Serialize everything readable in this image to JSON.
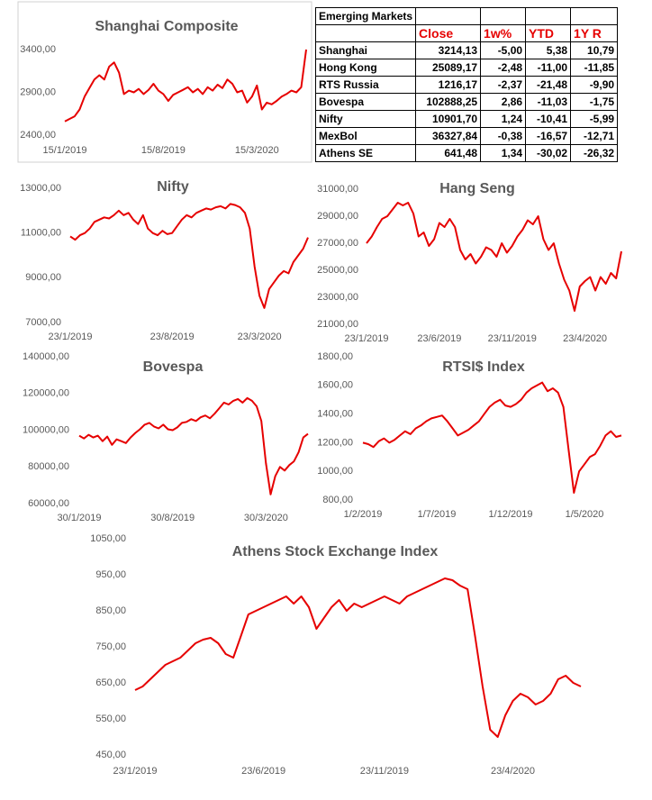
{
  "chart_data": [
    {
      "type": "line",
      "title": "Shanghai Composite",
      "color": "#e60000",
      "categories": [
        "15/1/2019",
        null,
        null,
        null,
        null,
        null,
        null,
        null,
        null,
        null,
        null,
        null,
        null,
        null,
        null,
        null,
        null,
        null,
        null,
        null,
        "15/8/2019",
        null,
        null,
        null,
        null,
        null,
        null,
        null,
        null,
        null,
        null,
        null,
        null,
        null,
        null,
        null,
        null,
        null,
        null,
        "15/3/2020",
        null,
        null,
        null,
        null,
        null,
        null,
        null,
        null,
        null,
        null
      ],
      "values": [
        2560,
        2590,
        2620,
        2700,
        2850,
        2950,
        3050,
        3100,
        3050,
        3200,
        3250,
        3130,
        2880,
        2920,
        2900,
        2940,
        2880,
        2930,
        3000,
        2920,
        2880,
        2800,
        2870,
        2900,
        2930,
        2960,
        2900,
        2940,
        2880,
        2960,
        2920,
        2990,
        2950,
        3050,
        3000,
        2900,
        2920,
        2780,
        2850,
        2980,
        2700,
        2780,
        2760,
        2800,
        2850,
        2880,
        2920,
        2900,
        2960,
        3400
      ],
      "ylim": [
        2400,
        3400
      ],
      "yticks": [
        {
          "value": 2400,
          "label": "2400,00"
        },
        {
          "value": 2900,
          "label": "2900,00"
        },
        {
          "value": 3400,
          "label": "3400,00"
        }
      ]
    },
    {
      "type": "line",
      "title": "Nifty",
      "color": "#e60000",
      "categories": [
        "23/1/2019",
        null,
        null,
        null,
        null,
        null,
        null,
        null,
        null,
        null,
        null,
        null,
        null,
        null,
        null,
        null,
        null,
        null,
        null,
        null,
        null,
        "23/8/2019",
        null,
        null,
        null,
        null,
        null,
        null,
        null,
        null,
        null,
        null,
        null,
        null,
        null,
        null,
        null,
        null,
        null,
        "23/3/2020",
        null,
        null,
        null,
        null,
        null,
        null,
        null,
        null,
        null,
        null
      ],
      "values": [
        10850,
        10700,
        10900,
        11000,
        11200,
        11500,
        11600,
        11700,
        11650,
        11800,
        12000,
        11800,
        11900,
        11600,
        11400,
        11800,
        11200,
        11000,
        10900,
        11100,
        10950,
        11000,
        11300,
        11600,
        11800,
        11700,
        11900,
        12000,
        12100,
        12050,
        12150,
        12200,
        12100,
        12300,
        12250,
        12150,
        11900,
        11200,
        9500,
        8200,
        7650,
        8500,
        8800,
        9100,
        9300,
        9200,
        9700,
        10000,
        10300,
        10800
      ],
      "ylim": [
        7000,
        13000
      ],
      "yticks": [
        {
          "value": 7000,
          "label": "7000,00"
        },
        {
          "value": 9000,
          "label": "9000,00"
        },
        {
          "value": 11000,
          "label": "11000,00"
        },
        {
          "value": 13000,
          "label": "13000,00"
        }
      ]
    },
    {
      "type": "line",
      "title": "Hang Seng",
      "color": "#e60000",
      "categories": [
        "23/1/2019",
        null,
        null,
        null,
        null,
        null,
        null,
        null,
        null,
        null,
        null,
        null,
        null,
        null,
        "23/6/2019",
        null,
        null,
        null,
        null,
        null,
        null,
        null,
        null,
        null,
        null,
        null,
        null,
        null,
        "23/11/2019",
        null,
        null,
        null,
        null,
        null,
        null,
        null,
        null,
        null,
        null,
        null,
        null,
        null,
        "23/4/2020",
        null,
        null,
        null,
        null,
        null,
        null,
        null
      ],
      "values": [
        27000,
        27500,
        28200,
        28800,
        29000,
        29500,
        30000,
        29800,
        30000,
        29200,
        27500,
        27800,
        26800,
        27300,
        28500,
        28200,
        28800,
        28200,
        26500,
        25800,
        26200,
        25500,
        26000,
        26700,
        26500,
        26000,
        27000,
        26300,
        26800,
        27500,
        28000,
        28700,
        28400,
        29000,
        27300,
        26500,
        27000,
        25500,
        24300,
        23500,
        22000,
        23800,
        24200,
        24500,
        23500,
        24500,
        24000,
        24800,
        24400,
        26400
      ],
      "ylim": [
        21000,
        31000
      ],
      "yticks": [
        {
          "value": 21000,
          "label": "21000,00"
        },
        {
          "value": 23000,
          "label": "23000,00"
        },
        {
          "value": 25000,
          "label": "25000,00"
        },
        {
          "value": 27000,
          "label": "27000,00"
        },
        {
          "value": 29000,
          "label": "29000,00"
        },
        {
          "value": 31000,
          "label": "31000,00"
        }
      ]
    },
    {
      "type": "line",
      "title": "Bovespa",
      "color": "#e60000",
      "categories": [
        "30/1/2019",
        null,
        null,
        null,
        null,
        null,
        null,
        null,
        null,
        null,
        null,
        null,
        null,
        null,
        null,
        null,
        null,
        null,
        null,
        null,
        "30/8/2019",
        null,
        null,
        null,
        null,
        null,
        null,
        null,
        null,
        null,
        null,
        null,
        null,
        null,
        null,
        null,
        null,
        null,
        null,
        null,
        "30/3/2020",
        null,
        null,
        null,
        null,
        null,
        null,
        null,
        null,
        null
      ],
      "values": [
        97000,
        95500,
        97500,
        96000,
        97000,
        94000,
        96500,
        92000,
        95000,
        94000,
        93000,
        96000,
        98500,
        100500,
        103000,
        104000,
        102000,
        101000,
        103000,
        100500,
        100000,
        101500,
        104000,
        104500,
        106000,
        105000,
        107000,
        108000,
        106500,
        109000,
        112000,
        115000,
        114000,
        116000,
        117000,
        115000,
        117500,
        116000,
        113000,
        105000,
        82000,
        65000,
        75000,
        80000,
        78000,
        81000,
        83000,
        88000,
        96000,
        98000
      ],
      "ylim": [
        60000,
        140000
      ],
      "yticks": [
        {
          "value": 60000,
          "label": "60000,00"
        },
        {
          "value": 80000,
          "label": "80000,00"
        },
        {
          "value": 100000,
          "label": "100000,00"
        },
        {
          "value": 120000,
          "label": "120000,00"
        },
        {
          "value": 140000,
          "label": "140000,00"
        }
      ]
    },
    {
      "type": "line",
      "title": "RTSI$ Index",
      "color": "#e60000",
      "categories": [
        "1/2/2019",
        null,
        null,
        null,
        null,
        null,
        null,
        null,
        null,
        null,
        null,
        null,
        null,
        null,
        "1/7/2019",
        null,
        null,
        null,
        null,
        null,
        null,
        null,
        null,
        null,
        null,
        null,
        null,
        null,
        "1/12/2019",
        null,
        null,
        null,
        null,
        null,
        null,
        null,
        null,
        null,
        null,
        null,
        null,
        null,
        "1/5/2020",
        null,
        null,
        null,
        null,
        null,
        null,
        null
      ],
      "values": [
        1200,
        1190,
        1170,
        1210,
        1230,
        1200,
        1220,
        1250,
        1280,
        1260,
        1300,
        1320,
        1350,
        1370,
        1380,
        1390,
        1350,
        1300,
        1250,
        1270,
        1290,
        1320,
        1350,
        1400,
        1450,
        1480,
        1500,
        1460,
        1450,
        1470,
        1500,
        1550,
        1580,
        1600,
        1620,
        1560,
        1580,
        1550,
        1450,
        1150,
        850,
        1000,
        1050,
        1100,
        1120,
        1180,
        1250,
        1280,
        1240,
        1250
      ],
      "ylim": [
        800,
        1800
      ],
      "yticks": [
        {
          "value": 800,
          "label": "800,00"
        },
        {
          "value": 1000,
          "label": "1000,00"
        },
        {
          "value": 1200,
          "label": "1200,00"
        },
        {
          "value": 1400,
          "label": "1400,00"
        },
        {
          "value": 1600,
          "label": "1600,00"
        },
        {
          "value": 1800,
          "label": "1800,00"
        }
      ]
    },
    {
      "type": "line",
      "title": "Athens Stock Exchange Index",
      "color": "#e60000",
      "categories": [
        "23/1/2019",
        null,
        null,
        null,
        null,
        null,
        null,
        null,
        null,
        null,
        null,
        null,
        null,
        null,
        null,
        null,
        null,
        "23/6/2019",
        null,
        null,
        null,
        null,
        null,
        null,
        null,
        null,
        null,
        null,
        null,
        null,
        null,
        null,
        null,
        "23/11/2019",
        null,
        null,
        null,
        null,
        null,
        null,
        null,
        null,
        null,
        null,
        null,
        null,
        null,
        null,
        null,
        null,
        "23/4/2020",
        null,
        null,
        null,
        null,
        null,
        null,
        null,
        null,
        null
      ],
      "values": [
        630,
        640,
        660,
        680,
        700,
        710,
        720,
        740,
        760,
        770,
        775,
        760,
        730,
        720,
        780,
        840,
        850,
        860,
        870,
        880,
        890,
        870,
        890,
        860,
        800,
        830,
        860,
        880,
        850,
        870,
        860,
        870,
        880,
        890,
        880,
        870,
        890,
        900,
        910,
        920,
        930,
        940,
        935,
        920,
        910,
        780,
        640,
        520,
        500,
        560,
        600,
        620,
        610,
        590,
        600,
        620,
        660,
        670,
        650,
        640
      ],
      "ylim": [
        450,
        1050
      ],
      "yticks": [
        {
          "value": 450,
          "label": "450,00"
        },
        {
          "value": 550,
          "label": "550,00"
        },
        {
          "value": 650,
          "label": "650,00"
        },
        {
          "value": 750,
          "label": "750,00"
        },
        {
          "value": 850,
          "label": "850,00"
        },
        {
          "value": 950,
          "label": "950,00"
        },
        {
          "value": 1050,
          "label": "1050,00"
        }
      ]
    }
  ],
  "table": {
    "title": "Emerging Markets",
    "columns": [
      "Close",
      "1w%",
      "YTD",
      "1Y R"
    ],
    "rows": [
      [
        "Shanghai",
        "3214,13",
        "-5,00",
        "5,38",
        "10,79"
      ],
      [
        "Hong Kong",
        "25089,17",
        "-2,48",
        "-11,00",
        "-11,85"
      ],
      [
        "RTS Russia",
        "1216,17",
        "-2,37",
        "-21,48",
        "-9,90"
      ],
      [
        "Bovespa",
        "102888,25",
        "2,86",
        "-11,03",
        "-1,75"
      ],
      [
        "Nifty",
        "10901,70",
        "1,24",
        "-10,41",
        "-5,99"
      ],
      [
        "MexBol",
        "36327,84",
        "-0,38",
        "-16,57",
        "-12,71"
      ],
      [
        "Athens SE",
        "641,48",
        "1,34",
        "-30,02",
        "-26,32"
      ]
    ]
  }
}
